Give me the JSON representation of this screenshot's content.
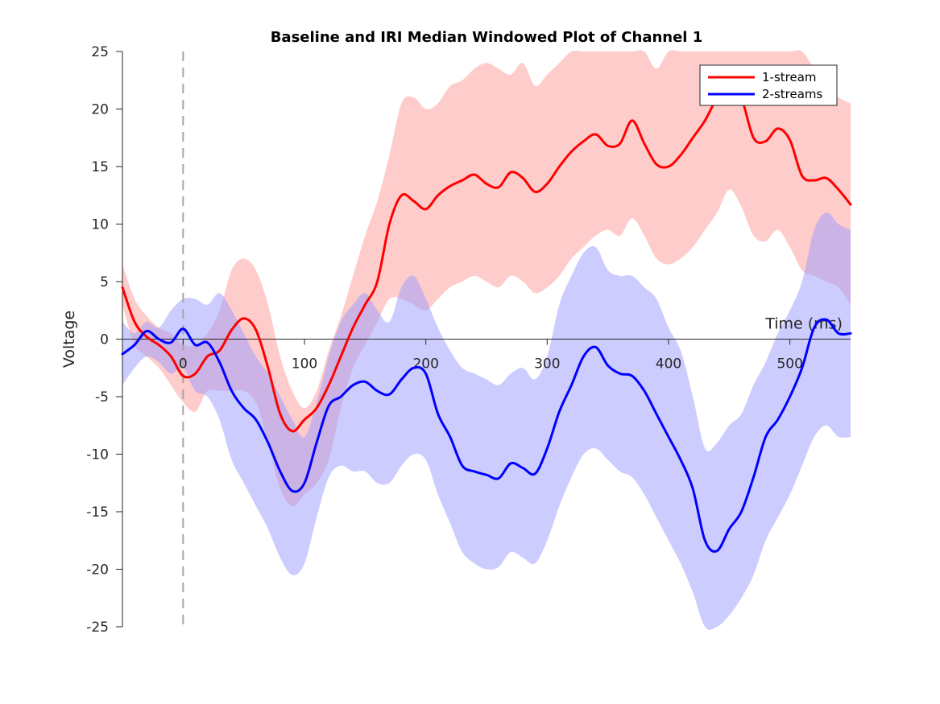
{
  "chart_data": {
    "type": "line",
    "title": "Baseline and IRI Median Windowed Plot of Channel 1",
    "xlabel": "Time (ms)",
    "ylabel": "Voltage",
    "xlim": [
      -50,
      550
    ],
    "ylim": [
      -25,
      25
    ],
    "xticks": [
      0,
      100,
      200,
      300,
      400,
      500
    ],
    "yticks": [
      -25,
      -20,
      -15,
      -10,
      -5,
      0,
      5,
      10,
      15,
      20,
      25
    ],
    "stimulus_onset_x": 0,
    "legend_position": "top-right",
    "grid": false,
    "series": [
      {
        "name": "1-stream",
        "color": "#ff0000",
        "band_color": "#ff9999",
        "x": [
          -50,
          -40,
          -30,
          -20,
          -10,
          0,
          10,
          20,
          30,
          40,
          50,
          60,
          70,
          80,
          90,
          100,
          110,
          120,
          130,
          140,
          150,
          160,
          170,
          180,
          190,
          200,
          210,
          220,
          230,
          240,
          250,
          260,
          270,
          280,
          290,
          300,
          310,
          320,
          330,
          340,
          350,
          360,
          370,
          380,
          390,
          400,
          410,
          420,
          430,
          440,
          450,
          460,
          470,
          480,
          490,
          500,
          510,
          520,
          530,
          540,
          550
        ],
        "y": [
          4.5,
          1.5,
          0.2,
          -0.5,
          -1.5,
          -3.2,
          -3.0,
          -1.5,
          -1.0,
          0.8,
          1.8,
          0.8,
          -2.5,
          -6.5,
          -8.0,
          -7.0,
          -6.0,
          -4.0,
          -1.5,
          1.0,
          3.0,
          5.0,
          10.0,
          12.5,
          12.0,
          11.3,
          12.5,
          13.3,
          13.8,
          14.3,
          13.5,
          13.2,
          14.5,
          14.0,
          12.8,
          13.5,
          15.0,
          16.3,
          17.2,
          17.8,
          16.8,
          17.0,
          19.0,
          17.0,
          15.2,
          15.0,
          16.0,
          17.5,
          19.0,
          21.0,
          22.5,
          21.0,
          17.5,
          17.2,
          18.3,
          17.3,
          14.2,
          13.8,
          14.0,
          13.0,
          11.7
        ],
        "upper": [
          6.5,
          3.5,
          2.0,
          1.0,
          0.5,
          -0.5,
          -0.5,
          0.5,
          2.5,
          6.0,
          7.0,
          6.0,
          3.0,
          -1.5,
          -4.5,
          -6.0,
          -4.5,
          -1.0,
          2.0,
          5.5,
          9.0,
          12.0,
          16.0,
          20.5,
          21.0,
          20.0,
          20.5,
          22.0,
          22.5,
          23.5,
          24.0,
          23.5,
          23.0,
          24.0,
          22.0,
          23.0,
          24.0,
          25.0,
          25.0,
          25.0,
          25.0,
          25.0,
          25.0,
          25.0,
          23.5,
          25.0,
          25.0,
          25.0,
          25.0,
          25.0,
          25.0,
          25.0,
          25.0,
          25.0,
          25.0,
          25.0,
          25.0,
          23.5,
          22.0,
          21.0,
          20.5
        ],
        "lower": [
          3.0,
          -0.5,
          -1.5,
          -2.5,
          -4.0,
          -5.5,
          -6.3,
          -4.5,
          -4.5,
          -4.5,
          -4.5,
          -5.5,
          -9.0,
          -13.0,
          -14.5,
          -13.5,
          -12.5,
          -10.5,
          -6.0,
          -2.5,
          -0.5,
          1.5,
          3.5,
          3.5,
          3.0,
          2.5,
          3.5,
          4.5,
          5.0,
          5.5,
          5.0,
          4.5,
          5.5,
          5.0,
          4.0,
          4.5,
          5.5,
          7.0,
          8.0,
          9.0,
          9.5,
          9.0,
          10.5,
          9.0,
          7.0,
          6.5,
          7.0,
          8.0,
          9.5,
          11.0,
          13.0,
          11.5,
          9.0,
          8.5,
          9.5,
          8.0,
          6.0,
          5.5,
          5.0,
          4.5,
          3.0
        ]
      },
      {
        "name": "2-streams",
        "color": "#0000ff",
        "band_color": "#9999ff",
        "x": [
          -50,
          -40,
          -30,
          -20,
          -10,
          0,
          10,
          20,
          30,
          40,
          50,
          60,
          70,
          80,
          90,
          100,
          110,
          120,
          130,
          140,
          150,
          160,
          170,
          180,
          190,
          200,
          210,
          220,
          230,
          240,
          250,
          260,
          270,
          280,
          290,
          300,
          310,
          320,
          330,
          340,
          350,
          360,
          370,
          380,
          390,
          400,
          410,
          420,
          430,
          440,
          450,
          460,
          470,
          480,
          490,
          500,
          510,
          520,
          530,
          540,
          550
        ],
        "y": [
          -1.3,
          -0.5,
          0.7,
          0.0,
          -0.3,
          0.9,
          -0.5,
          -0.3,
          -2.0,
          -4.5,
          -6.0,
          -7.0,
          -9.0,
          -11.5,
          -13.2,
          -12.5,
          -9.0,
          -5.8,
          -5.0,
          -4.0,
          -3.7,
          -4.5,
          -4.8,
          -3.5,
          -2.5,
          -3.0,
          -6.5,
          -8.5,
          -11.0,
          -11.5,
          -11.8,
          -12.1,
          -10.8,
          -11.2,
          -11.7,
          -9.5,
          -6.3,
          -4.0,
          -1.5,
          -0.7,
          -2.3,
          -3.0,
          -3.2,
          -4.5,
          -6.5,
          -8.5,
          -10.5,
          -13.0,
          -17.5,
          -18.4,
          -16.5,
          -15.0,
          -12.0,
          -8.5,
          -7.0,
          -5.0,
          -2.5,
          1.0,
          1.7,
          0.5,
          0.5
        ],
        "upper": [
          1.5,
          0.5,
          1.5,
          1.0,
          2.5,
          3.5,
          3.5,
          3.0,
          4.0,
          2.5,
          0.5,
          -1.5,
          -3.0,
          -5.0,
          -7.0,
          -8.5,
          -5.5,
          -1.5,
          1.5,
          3.0,
          4.0,
          2.5,
          1.5,
          4.5,
          5.5,
          3.5,
          1.0,
          -1.0,
          -2.5,
          -3.0,
          -3.5,
          -4.0,
          -3.0,
          -2.5,
          -3.5,
          -1.5,
          3.0,
          5.5,
          7.5,
          8.0,
          6.0,
          5.5,
          5.5,
          4.5,
          3.5,
          1.0,
          -1.0,
          -5.0,
          -9.5,
          -9.0,
          -7.5,
          -6.5,
          -4.0,
          -2.0,
          0.5,
          2.5,
          5.0,
          9.5,
          11.0,
          10.0,
          9.5
        ],
        "lower": [
          -4.0,
          -2.5,
          -1.5,
          -2.0,
          -3.0,
          -2.5,
          -4.5,
          -5.0,
          -7.0,
          -10.5,
          -12.5,
          -14.5,
          -16.5,
          -19.0,
          -20.5,
          -19.5,
          -15.5,
          -12.0,
          -11.0,
          -11.5,
          -11.5,
          -12.5,
          -12.5,
          -11.0,
          -10.0,
          -10.5,
          -13.5,
          -16.0,
          -18.5,
          -19.5,
          -20.0,
          -19.8,
          -18.5,
          -19.0,
          -19.5,
          -17.5,
          -14.5,
          -12.0,
          -10.0,
          -9.5,
          -10.5,
          -11.5,
          -12.0,
          -13.5,
          -15.5,
          -17.5,
          -19.5,
          -22.0,
          -25.0,
          -25.0,
          -24.0,
          -22.5,
          -20.5,
          -17.5,
          -15.5,
          -13.5,
          -11.0,
          -8.5,
          -7.5,
          -8.5,
          -8.5
        ]
      }
    ]
  }
}
